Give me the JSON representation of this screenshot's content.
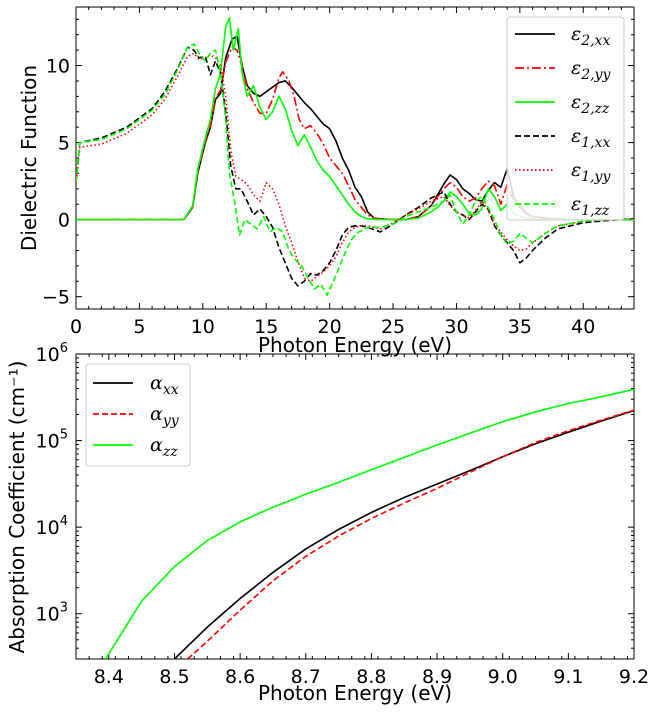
{
  "chart_data": [
    {
      "type": "line",
      "xlabel": "Photon Energy (eV)",
      "ylabel": "Dielectric Function",
      "xlim": [
        0,
        44
      ],
      "ylim": [
        -5.8,
        13.8
      ],
      "xticks": [
        0,
        5,
        10,
        15,
        20,
        25,
        30,
        35,
        40
      ],
      "xtick_labels": [
        "0",
        "5",
        "10",
        "15",
        "20",
        "25",
        "30",
        "35",
        "40"
      ],
      "yticks": [
        -5,
        0,
        5,
        10
      ],
      "ytick_labels": [
        "−5",
        "0",
        "5",
        "10"
      ],
      "legend_position": "upper-right",
      "series": [
        {
          "name": "ε2,xx",
          "label_base": "ε",
          "label_sub": "2,xx",
          "color": "#000000",
          "dash": "solid",
          "x": [
            0,
            8.5,
            9.2,
            9.6,
            10.2,
            10.6,
            11.0,
            11.4,
            11.8,
            12.3,
            12.7,
            13.1,
            13.5,
            14.0,
            14.5,
            15.0,
            15.5,
            16.0,
            16.5,
            17.0,
            17.5,
            18.0,
            18.5,
            19.0,
            19.5,
            20.0,
            20.5,
            21.0,
            21.5,
            22.0,
            22.5,
            23.0,
            23.5,
            24.0,
            25.0,
            26.0,
            27.0,
            28.0,
            28.5,
            29.0,
            29.5,
            30.0,
            30.5,
            31.0,
            31.5,
            32.0,
            32.5,
            33.0,
            33.5,
            34.0,
            34.5,
            35.0,
            35.5,
            36.0,
            37.0,
            38.0,
            40.0,
            44.0
          ],
          "y": [
            0,
            0,
            0.8,
            3.0,
            5.0,
            6.0,
            7.8,
            8.2,
            10.5,
            11.7,
            11.9,
            10.0,
            8.7,
            8.2,
            8.0,
            8.3,
            8.6,
            8.9,
            9.0,
            8.6,
            8.1,
            7.6,
            7.2,
            6.7,
            6.2,
            5.9,
            5.1,
            4.0,
            3.2,
            2.1,
            1.5,
            0.5,
            0.1,
            0.05,
            0,
            0,
            0.2,
            0.9,
            1.6,
            2.3,
            2.9,
            2.6,
            2.0,
            1.7,
            1.3,
            1.2,
            1.9,
            2.4,
            2.1,
            3.3,
            1.5,
            0.8,
            0.4,
            0.2,
            0.1,
            0.05,
            0,
            0
          ]
        },
        {
          "name": "ε2,yy",
          "label_base": "ε",
          "label_sub": "2,yy",
          "color": "#ff0000",
          "dash": "dashdot",
          "x": [
            0,
            8.5,
            9.2,
            9.6,
            10.2,
            10.6,
            11.0,
            11.4,
            11.8,
            12.3,
            12.7,
            13.1,
            13.5,
            14.0,
            14.5,
            15.0,
            15.5,
            16.0,
            16.3,
            16.8,
            17.2,
            17.6,
            18.0,
            18.5,
            19.0,
            19.5,
            20.0,
            20.5,
            21.0,
            21.5,
            22.0,
            22.5,
            23.0,
            23.5,
            24.0,
            25.0,
            26.0,
            27.0,
            28.0,
            28.5,
            29.0,
            29.5,
            30.0,
            30.5,
            31.0,
            31.5,
            32.0,
            32.5,
            33.0,
            33.5,
            34.0,
            34.5,
            35.0,
            35.5,
            36.0,
            37.0,
            38.0,
            40.0,
            44.0
          ],
          "y": [
            0,
            0,
            0.8,
            3.1,
            5.1,
            6.1,
            7.9,
            8.4,
            10.2,
            11.2,
            11.0,
            9.9,
            8.5,
            7.6,
            6.9,
            6.9,
            7.8,
            9.2,
            9.6,
            9.0,
            8.0,
            6.5,
            5.9,
            6.1,
            5.6,
            4.9,
            4.0,
            3.5,
            3.0,
            2.2,
            1.3,
            0.8,
            0.3,
            0.1,
            0.05,
            0,
            0,
            0.2,
            0.9,
            1.5,
            2.0,
            2.4,
            2.1,
            1.5,
            1.2,
            1.4,
            2.0,
            2.5,
            2.2,
            1.0,
            2.3,
            1.2,
            1.0,
            0.5,
            0.2,
            0.1,
            0.05,
            0,
            0
          ]
        },
        {
          "name": "ε2,zz",
          "label_base": "ε",
          "label_sub": "2,zz",
          "color": "#00ff00",
          "dash": "solid",
          "x": [
            0,
            8.5,
            9.2,
            9.6,
            10.2,
            10.6,
            11.0,
            11.4,
            11.8,
            12.1,
            12.4,
            12.8,
            13.1,
            13.5,
            14.0,
            14.5,
            15.0,
            15.5,
            16.0,
            16.5,
            17.0,
            17.5,
            18.0,
            18.5,
            19.0,
            19.5,
            20.0,
            20.5,
            21.0,
            21.5,
            22.0,
            22.5,
            23.0,
            24.0,
            25.0,
            26.0,
            27.0,
            28.0,
            28.5,
            29.0,
            29.5,
            30.0,
            30.5,
            31.0,
            31.5,
            32.0,
            32.5,
            33.0,
            33.5,
            34.0,
            34.5,
            35.0,
            35.5,
            36.0,
            37.0,
            38.0,
            40.0,
            44.0
          ],
          "y": [
            0,
            0,
            0.9,
            3.3,
            5.3,
            6.5,
            8.5,
            9.5,
            12.5,
            13.1,
            11.0,
            12.4,
            9.5,
            8.0,
            8.7,
            7.3,
            6.5,
            7.0,
            8.0,
            7.2,
            5.8,
            4.8,
            5.5,
            4.7,
            3.8,
            3.2,
            2.8,
            2.2,
            1.6,
            1.0,
            0.5,
            0.2,
            0.05,
            0,
            0,
            0,
            0.1,
            0.5,
            0.8,
            1.2,
            1.8,
            1.5,
            1.0,
            0.4,
            0.3,
            0.7,
            2.0,
            1.5,
            0.6,
            1.0,
            0.4,
            0.2,
            0.1,
            0.05,
            0,
            0,
            0,
            0
          ]
        },
        {
          "name": "ε1,xx",
          "label_base": "ε",
          "label_sub": "1,xx",
          "color": "#000000",
          "dash": "dashed",
          "x": [
            0,
            0.3,
            2,
            4,
            6,
            7,
            8,
            8.8,
            9.3,
            9.7,
            10.2,
            10.6,
            11.0,
            11.4,
            11.8,
            12.2,
            12.6,
            13.0,
            13.5,
            14.0,
            14.5,
            15.0,
            15.5,
            16.0,
            16.5,
            17.0,
            17.5,
            18.0,
            18.5,
            19.0,
            19.5,
            20.0,
            20.5,
            21.0,
            21.5,
            22.0,
            22.5,
            23.0,
            24.0,
            25.0,
            26.0,
            27.0,
            28.0,
            29.0,
            29.5,
            30.0,
            30.5,
            31.0,
            31.5,
            32.0,
            32.5,
            33.0,
            33.5,
            34.0,
            34.5,
            35.0,
            35.5,
            36.0,
            37.0,
            38.0,
            40.0,
            42.0,
            44.0
          ],
          "y": [
            2.4,
            5.0,
            5.3,
            6.0,
            7.2,
            8.3,
            9.8,
            11.2,
            11.0,
            10.5,
            10.6,
            9.4,
            10.3,
            9.5,
            7.0,
            3.5,
            2.0,
            2.0,
            1.2,
            0.3,
            0.7,
            0.2,
            -0.5,
            -1.8,
            -2.8,
            -3.8,
            -4.3,
            -4.0,
            -3.5,
            -3.6,
            -3.3,
            -2.8,
            -2.0,
            -1.0,
            -0.5,
            -0.4,
            -0.4,
            -0.5,
            -0.8,
            -0.3,
            0.3,
            0.8,
            1.4,
            1.8,
            1.0,
            0.5,
            0.3,
            0.0,
            0.5,
            1.0,
            0.7,
            -0.4,
            -1.0,
            -1.5,
            -2.0,
            -2.8,
            -2.5,
            -2.0,
            -1.2,
            -0.6,
            -0.2,
            -0.05,
            0.05
          ]
        },
        {
          "name": "ε1,yy",
          "label_base": "ε",
          "label_sub": "1,yy",
          "color": "#ff0000",
          "dash": "dotted",
          "x": [
            0,
            0.3,
            2,
            4,
            6,
            7,
            8,
            8.8,
            9.3,
            9.7,
            10.2,
            10.6,
            11.0,
            11.4,
            11.8,
            12.2,
            12.6,
            13.0,
            13.5,
            14.0,
            14.5,
            15.0,
            15.5,
            16.0,
            16.5,
            17.0,
            17.5,
            18.0,
            18.5,
            19.0,
            19.5,
            20.0,
            20.5,
            21.0,
            21.5,
            22.0,
            22.5,
            23.0,
            24.0,
            25.0,
            26.0,
            27.0,
            28.0,
            29.0,
            29.5,
            30.0,
            30.5,
            31.0,
            31.5,
            32.0,
            32.5,
            33.0,
            33.5,
            34.0,
            34.5,
            35.0,
            35.5,
            36.0,
            37.0,
            38.0,
            40.0,
            42.0,
            44.0
          ],
          "y": [
            2.3,
            4.7,
            4.9,
            5.6,
            6.8,
            7.8,
            9.3,
            10.6,
            10.8,
            10.4,
            10.5,
            10.7,
            10.5,
            10.0,
            8.0,
            4.5,
            2.8,
            2.6,
            2.3,
            1.6,
            1.2,
            2.4,
            2.0,
            1.0,
            -0.4,
            -1.5,
            -2.7,
            -3.8,
            -4.0,
            -3.7,
            -3.4,
            -3.0,
            -2.4,
            -1.5,
            -0.8,
            -0.5,
            -0.4,
            -0.4,
            -0.6,
            -0.2,
            0.3,
            0.7,
            1.2,
            1.5,
            0.9,
            0.5,
            0.3,
            0.1,
            0.6,
            1.2,
            0.6,
            -0.3,
            -0.8,
            -1.3,
            -1.7,
            -2.0,
            -1.9,
            -1.5,
            -0.9,
            -0.4,
            -0.1,
            0.0,
            0.05
          ]
        },
        {
          "name": "ε1,zz",
          "label_base": "ε",
          "label_sub": "1,zz",
          "color": "#00ff00",
          "dash": "dashed",
          "x": [
            0,
            0.3,
            2,
            4,
            6,
            7,
            8,
            8.8,
            9.3,
            9.7,
            10.2,
            10.6,
            11.0,
            11.4,
            11.8,
            12.1,
            12.5,
            12.9,
            13.3,
            13.8,
            14.3,
            14.8,
            15.3,
            15.8,
            16.3,
            16.8,
            17.3,
            17.8,
            18.3,
            18.8,
            19.3,
            19.8,
            20.3,
            20.8,
            21.3,
            21.8,
            22.3,
            23.0,
            24.0,
            25.0,
            26.0,
            27.0,
            28.0,
            29.0,
            29.5,
            30.0,
            30.5,
            31.0,
            31.5,
            32.0,
            32.5,
            33.0,
            33.5,
            34.0,
            34.5,
            35.0,
            35.5,
            36.0,
            37.0,
            38.0,
            40.0,
            42.0,
            44.0
          ],
          "y": [
            2.4,
            5.0,
            5.2,
            5.9,
            7.1,
            8.1,
            9.7,
            11.2,
            11.4,
            10.8,
            10.3,
            10.8,
            11.0,
            9.5,
            6.5,
            3.0,
            1.2,
            -1.0,
            0.0,
            -0.3,
            -0.6,
            0.2,
            -0.8,
            -0.5,
            -0.8,
            -2.0,
            -2.6,
            -3.0,
            -3.8,
            -4.5,
            -4.2,
            -4.9,
            -4.0,
            -3.0,
            -2.0,
            -1.2,
            -0.8,
            -0.5,
            -0.5,
            -0.3,
            0.2,
            0.5,
            0.8,
            1.2,
            1.6,
            0.5,
            -0.3,
            0.3,
            1.2,
            1.5,
            0.8,
            0.0,
            -1.0,
            -1.6,
            -1.4,
            -0.9,
            -1.2,
            -1.5,
            -0.9,
            -0.4,
            -0.1,
            0.0,
            0.0
          ]
        }
      ]
    },
    {
      "type": "line",
      "yscale": "log",
      "xlabel": "Photon Energy (eV)",
      "ylabel": "Absorption Coefficient (cm⁻¹)",
      "xlim": [
        8.35,
        9.2
      ],
      "ylim": [
        300,
        1000000
      ],
      "xticks": [
        8.4,
        8.5,
        8.6,
        8.7,
        8.8,
        8.9,
        9.0,
        9.1,
        9.2
      ],
      "xtick_labels": [
        "8.4",
        "8.5",
        "8.6",
        "8.7",
        "8.8",
        "8.9",
        "9.0",
        "9.1",
        "9.2"
      ],
      "yticks": [
        1000,
        10000,
        100000,
        1000000
      ],
      "ytick_labels": [
        {
          "base": "10",
          "exp": "3"
        },
        {
          "base": "10",
          "exp": "4"
        },
        {
          "base": "10",
          "exp": "5"
        },
        {
          "base": "10",
          "exp": "6"
        }
      ],
      "legend_position": "upper-left",
      "series": [
        {
          "name": "αxx",
          "label_base": "α",
          "label_sub": "xx",
          "color": "#000000",
          "dash": "solid",
          "x": [
            8.5,
            8.55,
            8.6,
            8.65,
            8.7,
            8.75,
            8.8,
            8.85,
            8.9,
            8.95,
            9.0,
            9.05,
            9.1,
            9.15,
            9.2
          ],
          "y": [
            300,
            700,
            1500,
            3000,
            5600,
            9400,
            14800,
            22000,
            31500,
            45000,
            65000,
            92000,
            125000,
            168000,
            222000
          ]
        },
        {
          "name": "αyy",
          "label_base": "α",
          "label_sub": "yy",
          "color": "#ff0000",
          "dash": "dashed",
          "x": [
            8.52,
            8.55,
            8.6,
            8.65,
            8.7,
            8.75,
            8.8,
            8.85,
            8.9,
            8.95,
            9.0,
            9.05,
            9.1,
            9.15,
            9.2
          ],
          "y": [
            300,
            480,
            1100,
            2400,
            4600,
            7900,
            12600,
            19000,
            28000,
            43000,
            65000,
            95000,
            130000,
            172000,
            225000
          ]
        },
        {
          "name": "αzz",
          "label_base": "α",
          "label_sub": "zz",
          "color": "#00ff00",
          "dash": "solid",
          "x": [
            8.395,
            8.45,
            8.5,
            8.55,
            8.6,
            8.65,
            8.7,
            8.75,
            8.8,
            8.85,
            8.9,
            8.95,
            9.0,
            9.05,
            9.1,
            9.15,
            9.2
          ],
          "y": [
            300,
            1400,
            3500,
            7000,
            11500,
            17000,
            24000,
            33000,
            46000,
            64000,
            89000,
            122000,
            165000,
            215000,
            268000,
            320000,
            390000
          ]
        }
      ]
    }
  ]
}
